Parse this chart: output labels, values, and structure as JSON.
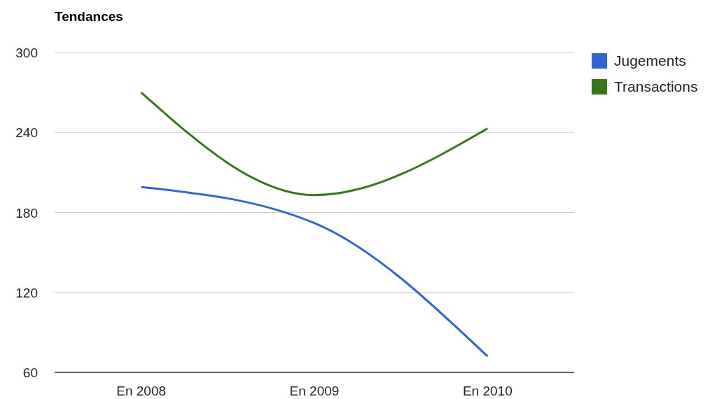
{
  "chart_data": {
    "type": "line",
    "title": "Tendances",
    "categories": [
      "En 2008",
      "En 2009",
      "En 2010"
    ],
    "series": [
      {
        "name": "Jugements",
        "color": "#3366cc",
        "values": [
          199,
          172,
          72
        ]
      },
      {
        "name": "Transactions",
        "color": "#38761d",
        "values": [
          270,
          193,
          243
        ]
      }
    ],
    "ylim": [
      60,
      300
    ],
    "yticks": [
      60,
      120,
      180,
      240,
      300
    ],
    "grid": "y",
    "legend": "top right",
    "marker": "none",
    "line_style": "solid"
  }
}
